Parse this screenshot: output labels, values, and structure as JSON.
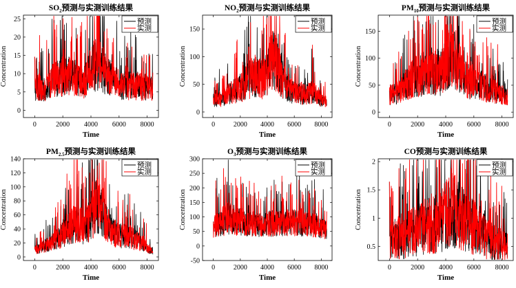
{
  "figure": {
    "caption_suffix": "预测与实测训练结果"
  },
  "chart_data": [
    {
      "type": "line",
      "title_main": "SO",
      "title_sub": "2",
      "title_rest": "预测与实测训练结果",
      "xlabel": "Time",
      "ylabel": "Concentration",
      "xlim": [
        -800,
        8800
      ],
      "ylim": [
        -2,
        26
      ],
      "xticks": [
        0,
        2000,
        4000,
        6000,
        8000
      ],
      "yticks": [
        0,
        5,
        10,
        15,
        20,
        25
      ],
      "legend": {
        "position": "top-right",
        "entries": [
          "预测",
          "实测"
        ]
      },
      "series": [
        {
          "name": "预测",
          "color": "#000000",
          "values": [
            5.5,
            6.0,
            5.2,
            7.0,
            8.2,
            8.0,
            8.5,
            9.0,
            7.5,
            7.0,
            8.0,
            10.0,
            12.0,
            11.0,
            9.0,
            8.0,
            7.0,
            6.0,
            6.5,
            6.0,
            6.5,
            5.8,
            6.2,
            5.0
          ]
        },
        {
          "name": "实测",
          "color": "#ff0000",
          "values": [
            5.5,
            6.0,
            5.0,
            7.0,
            8.5,
            8.0,
            8.7,
            9.0,
            7.5,
            7.0,
            8.0,
            10.0,
            12.5,
            11.0,
            9.0,
            8.0,
            7.0,
            6.0,
            6.5,
            6.0,
            6.5,
            5.8,
            6.2,
            5.0
          ]
        }
      ]
    },
    {
      "type": "line",
      "title_main": "NO",
      "title_sub": "2",
      "title_rest": "预测与实测训练结果",
      "xlabel": "Time",
      "ylabel": "Concentration",
      "xlim": [
        -800,
        8800
      ],
      "ylim": [
        -10,
        175
      ],
      "xticks": [
        0,
        2000,
        4000,
        6000,
        8000
      ],
      "yticks": [
        0,
        50,
        100,
        150
      ],
      "legend": {
        "position": "top-right",
        "entries": [
          "预测",
          "实测"
        ]
      },
      "series": [
        {
          "name": "预测",
          "color": "#000000",
          "values": [
            20,
            22,
            25,
            30,
            35,
            38,
            45,
            55,
            60,
            58,
            55,
            70,
            90,
            80,
            55,
            40,
            35,
            30,
            32,
            30,
            35,
            28,
            20,
            15
          ]
        },
        {
          "name": "实测",
          "color": "#ff0000",
          "values": [
            20,
            22,
            25,
            30,
            35,
            38,
            45,
            55,
            60,
            58,
            55,
            70,
            92,
            80,
            55,
            40,
            35,
            30,
            32,
            30,
            35,
            28,
            20,
            15
          ]
        }
      ]
    },
    {
      "type": "line",
      "title_main": "PM",
      "title_sub": "10",
      "title_rest": "预测与实测训练结果",
      "xlabel": "Time",
      "ylabel": "Concentration",
      "xlim": [
        -800,
        8800
      ],
      "ylim": [
        -10,
        180
      ],
      "xticks": [
        0,
        2000,
        4000,
        6000,
        8000
      ],
      "yticks": [
        0,
        50,
        100,
        150
      ],
      "legend": {
        "position": "top-right",
        "entries": [
          "预测",
          "实测"
        ]
      },
      "series": [
        {
          "name": "预测",
          "color": "#000000",
          "values": [
            30,
            32,
            35,
            45,
            55,
            60,
            65,
            70,
            72,
            70,
            68,
            85,
            100,
            90,
            70,
            55,
            50,
            45,
            48,
            40,
            42,
            35,
            30,
            25
          ]
        },
        {
          "name": "实测",
          "color": "#ff0000",
          "values": [
            30,
            32,
            35,
            45,
            55,
            60,
            65,
            70,
            72,
            70,
            68,
            85,
            102,
            90,
            70,
            55,
            50,
            45,
            48,
            40,
            42,
            35,
            30,
            25
          ]
        }
      ]
    },
    {
      "type": "line",
      "title_main": "PM",
      "title_sub": "2.5",
      "title_rest": "预测与实测训练结果",
      "xlabel": "Time",
      "ylabel": "Concentration",
      "xlim": [
        -800,
        8800
      ],
      "ylim": [
        -5,
        140
      ],
      "xticks": [
        0,
        2000,
        4000,
        6000,
        8000
      ],
      "yticks": [
        0,
        20,
        40,
        60,
        80,
        100,
        120,
        140
      ],
      "legend": {
        "position": "top-right",
        "entries": [
          "预测",
          "实测"
        ]
      },
      "series": [
        {
          "name": "预测",
          "color": "#000000",
          "values": [
            10,
            12,
            15,
            18,
            22,
            28,
            35,
            40,
            45,
            42,
            40,
            55,
            70,
            60,
            45,
            35,
            30,
            28,
            30,
            25,
            22,
            18,
            12,
            8
          ]
        },
        {
          "name": "实测",
          "color": "#ff0000",
          "values": [
            10,
            12,
            15,
            18,
            22,
            28,
            35,
            40,
            45,
            42,
            40,
            55,
            72,
            60,
            45,
            35,
            30,
            28,
            30,
            25,
            22,
            18,
            12,
            8
          ]
        }
      ]
    },
    {
      "type": "line",
      "title_main": "O",
      "title_sub": "3",
      "title_rest": "预测与实测训练结果",
      "xlabel": "Time",
      "ylabel": "Concentration",
      "xlim": [
        -800,
        8800
      ],
      "ylim": [
        -50,
        300
      ],
      "xticks": [
        0,
        2000,
        4000,
        6000,
        8000
      ],
      "yticks": [
        -50,
        0,
        50,
        100,
        150,
        200,
        250,
        300
      ],
      "legend": {
        "position": "top-right",
        "entries": [
          "预测",
          "实测"
        ]
      },
      "series": [
        {
          "name": "预测",
          "color": "#000000",
          "values": [
            60,
            70,
            80,
            90,
            85,
            80,
            75,
            70,
            72,
            68,
            65,
            70,
            75,
            72,
            70,
            75,
            80,
            78,
            75,
            70,
            68,
            65,
            60,
            55
          ]
        },
        {
          "name": "实测",
          "color": "#ff0000",
          "values": [
            60,
            70,
            80,
            90,
            85,
            80,
            75,
            70,
            72,
            68,
            65,
            70,
            75,
            72,
            70,
            75,
            80,
            78,
            75,
            70,
            68,
            65,
            60,
            55
          ]
        }
      ]
    },
    {
      "type": "line",
      "title_main": "CO",
      "title_sub": "",
      "title_rest": "预测与实测训练结果",
      "xlabel": "Time",
      "ylabel": "Concentration",
      "xlim": [
        -800,
        8800
      ],
      "ylim": [
        0.25,
        2.05
      ],
      "xticks": [
        0,
        2000,
        4000,
        6000,
        8000
      ],
      "yticks": [
        0.5,
        1,
        1.5,
        2
      ],
      "legend": {
        "position": "top-right",
        "entries": [
          "预测",
          "实测"
        ]
      },
      "series": [
        {
          "name": "预测",
          "color": "#000000",
          "values": [
            0.55,
            0.6,
            0.6,
            0.62,
            0.7,
            0.72,
            0.75,
            0.8,
            0.85,
            0.85,
            0.9,
            1.0,
            1.1,
            1.05,
            0.95,
            0.85,
            0.8,
            0.75,
            0.7,
            0.6,
            0.55,
            0.5,
            0.48,
            0.45
          ]
        },
        {
          "name": "实测",
          "color": "#ff0000",
          "values": [
            0.55,
            0.6,
            0.6,
            0.62,
            0.7,
            0.72,
            0.75,
            0.8,
            0.85,
            0.85,
            0.9,
            1.0,
            1.12,
            1.05,
            0.95,
            0.85,
            0.8,
            0.75,
            0.7,
            0.6,
            0.55,
            0.5,
            0.48,
            0.45
          ]
        }
      ]
    }
  ]
}
